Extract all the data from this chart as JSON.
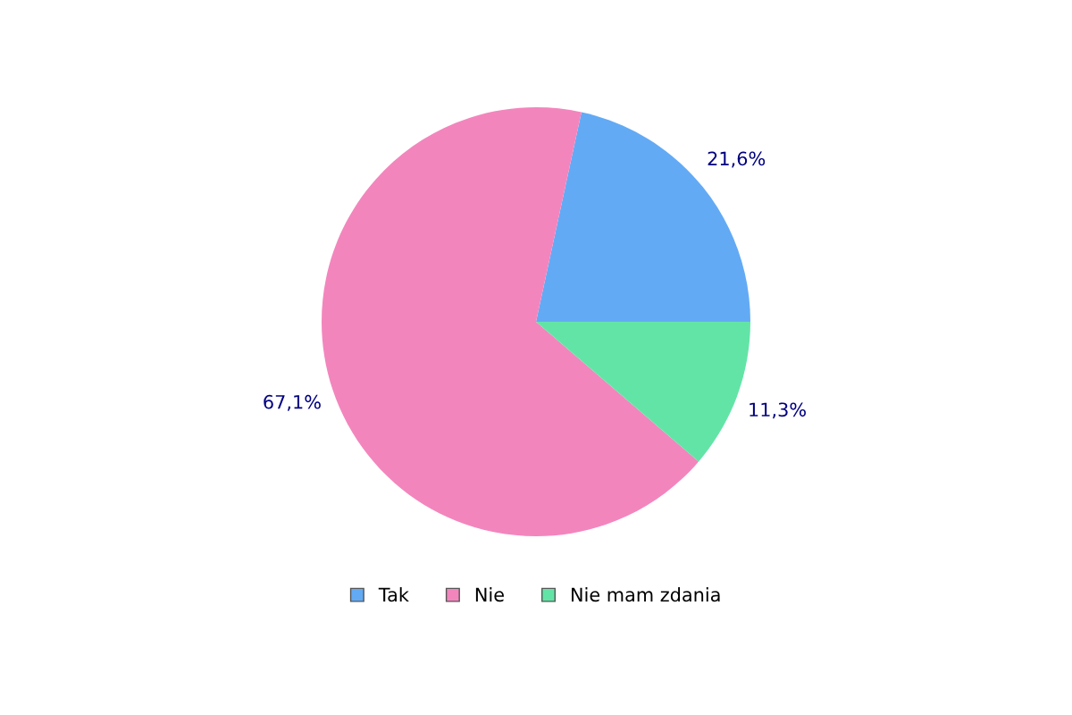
{
  "chart_data": {
    "type": "pie",
    "categories": [
      "Tak",
      "Nie",
      "Nie mam zdania"
    ],
    "values": [
      21.6,
      67.1,
      11.3
    ],
    "value_labels": [
      "21,6%",
      "67,1%",
      "11,3%"
    ],
    "colors": [
      "#63aaf5",
      "#f385bd",
      "#63e4a7"
    ],
    "legend": "bottom"
  }
}
